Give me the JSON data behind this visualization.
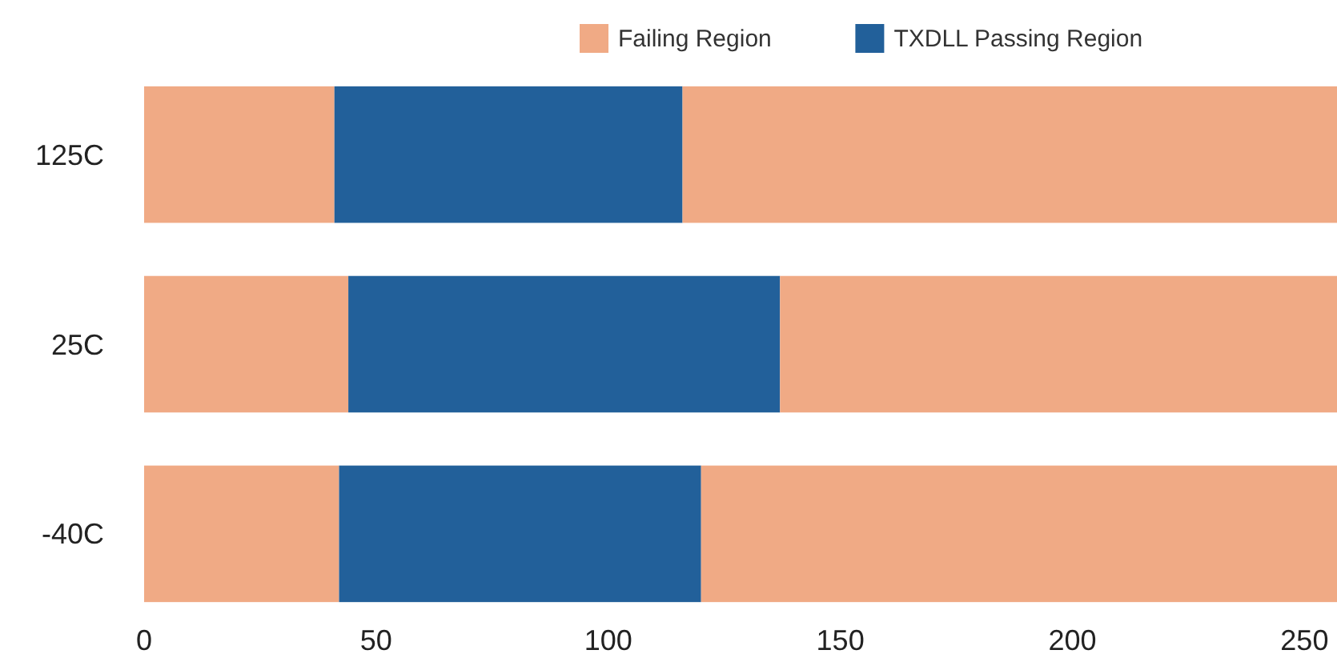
{
  "chart_data": {
    "type": "bar",
    "orientation": "horizontal",
    "stacked": true,
    "categories": [
      "125C",
      "25C",
      "-40C"
    ],
    "series": [
      {
        "name": "Failing Region",
        "color": "#f0aa85",
        "values": [
          41,
          44,
          42
        ]
      },
      {
        "name": "TXDLL Passing Region",
        "color": "#22609a",
        "values": [
          75,
          93,
          78
        ]
      },
      {
        "color": "#f0aa85",
        "values": [
          141,
          120,
          137
        ]
      }
    ],
    "xlim": [
      0,
      257
    ],
    "xticks": [
      0,
      50,
      100,
      150,
      200,
      250
    ],
    "grid": false,
    "legend": "top right"
  }
}
